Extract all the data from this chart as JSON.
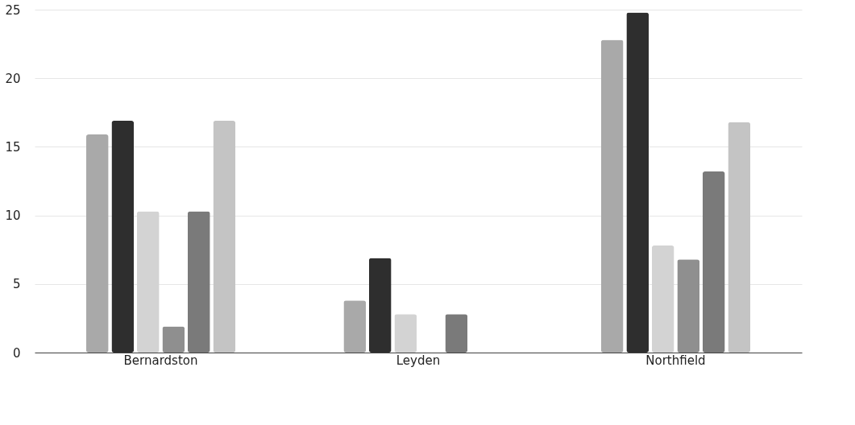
{
  "chart_data": {
    "type": "bar",
    "categories": [
      "Bernardston",
      "Leyden",
      "Northfield"
    ],
    "series": [
      {
        "color": "#a9a9a9",
        "values": [
          15.9,
          3.8,
          22.8
        ]
      },
      {
        "color": "#2e2e2e",
        "values": [
          16.9,
          6.9,
          24.8
        ]
      },
      {
        "color": "#d3d3d3",
        "values": [
          10.3,
          2.8,
          7.8
        ]
      },
      {
        "color": "#8f8f8f",
        "values": [
          1.9,
          null,
          6.8
        ]
      },
      {
        "color": "#7a7a7a",
        "values": [
          10.3,
          2.8,
          13.2
        ]
      },
      {
        "color": "#c4c4c4",
        "values": [
          16.9,
          null,
          16.8
        ]
      }
    ],
    "ylim": [
      0,
      25
    ],
    "yticks": [
      0,
      5,
      10,
      15,
      20,
      25
    ],
    "grid": "y",
    "legend": false
  }
}
